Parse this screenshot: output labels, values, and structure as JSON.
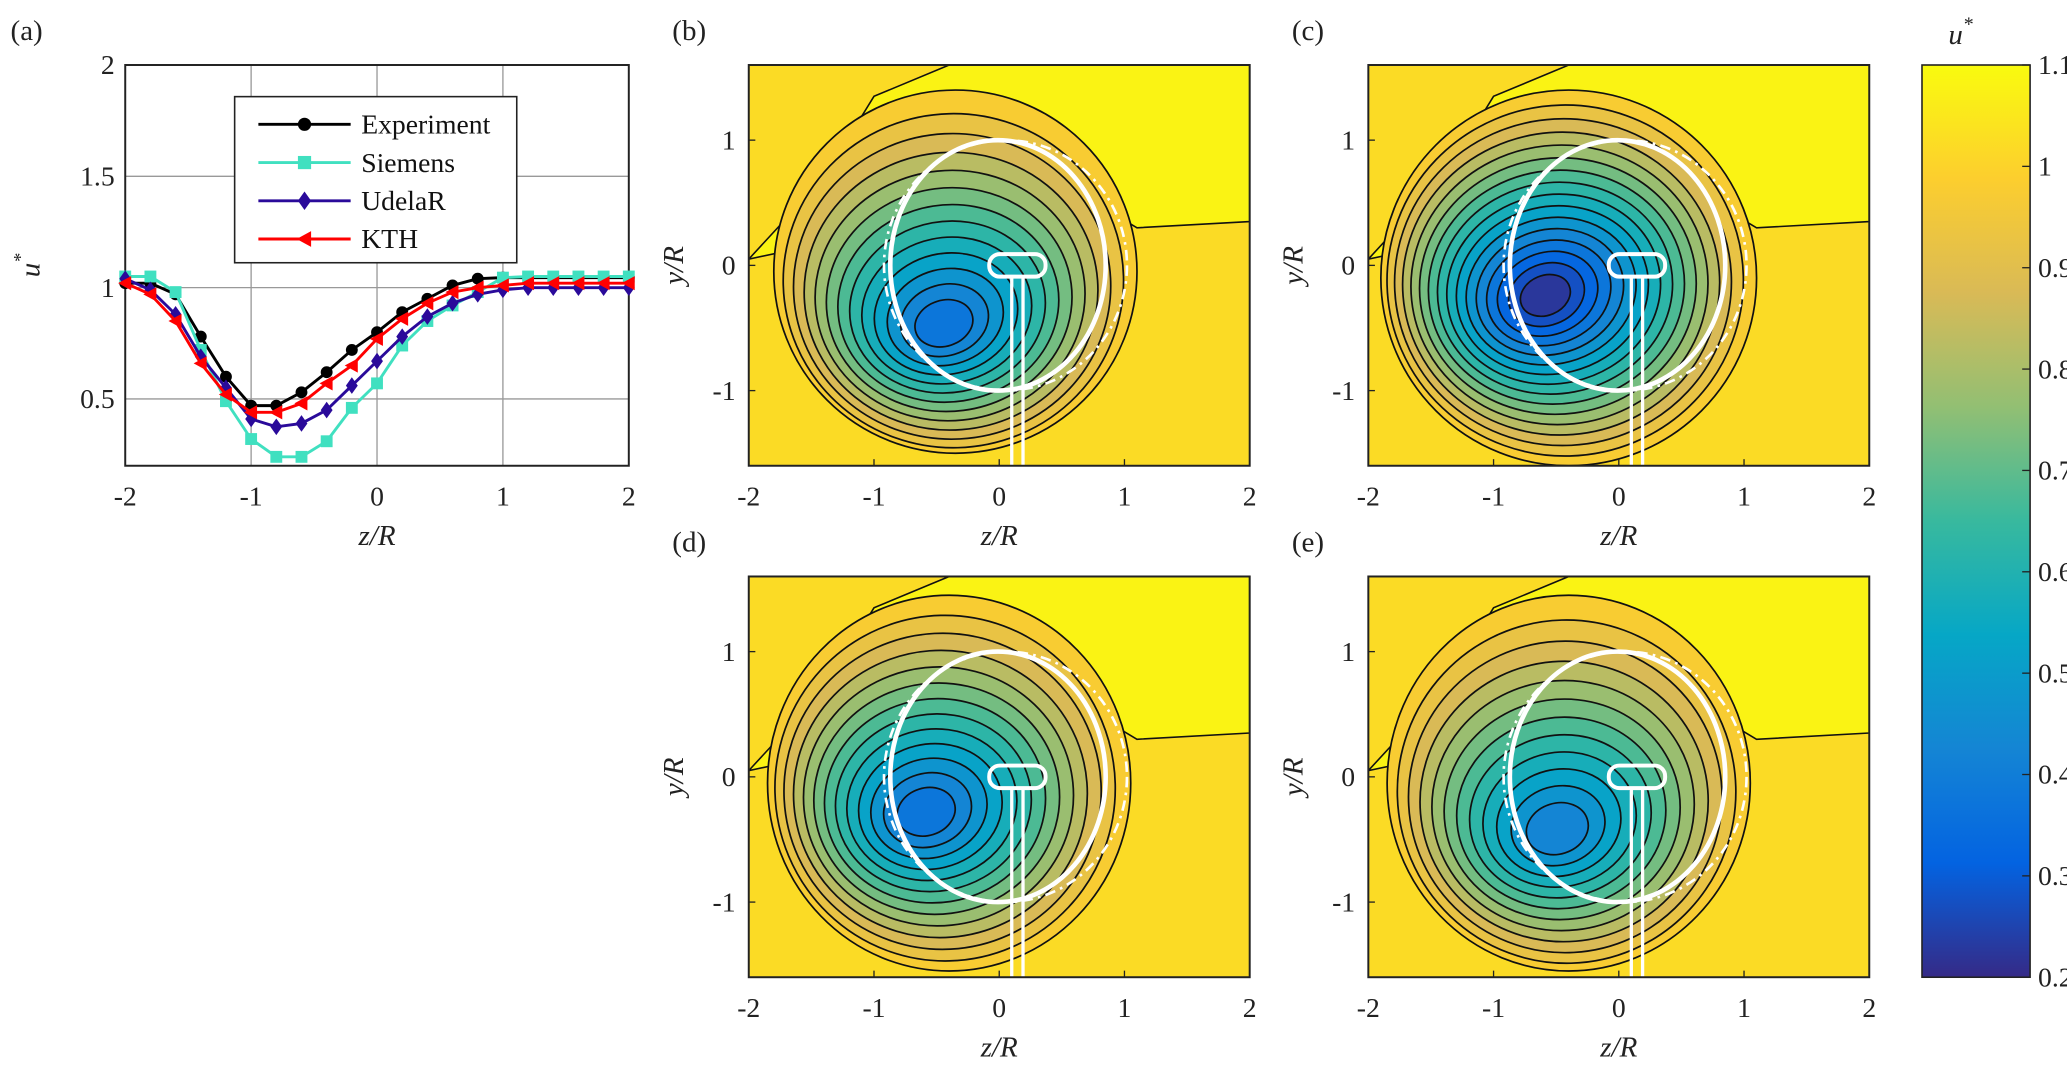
{
  "panel_labels": {
    "a": "(a)",
    "b": "(b)",
    "c": "(c)",
    "d": "(d)",
    "e": "(e)"
  },
  "chart_data": [
    {
      "type": "line",
      "panel": "(a)",
      "xlabel": "z/R",
      "ylabel": "u*",
      "xlim": [
        -2,
        2
      ],
      "ylim": [
        0.2,
        2
      ],
      "xticks": [
        "-2",
        "-1",
        "0",
        "1",
        "2"
      ],
      "yticks": [
        "0.5",
        "1",
        "1.5",
        "2"
      ],
      "ytick_values": [
        0.5,
        1,
        1.5,
        2
      ],
      "grid": true,
      "legend_position": "top-center",
      "x": [
        -2,
        -1.8,
        -1.6,
        -1.4,
        -1.2,
        -1.0,
        -0.8,
        -0.6,
        -0.4,
        -0.2,
        0,
        0.2,
        0.4,
        0.6,
        0.8,
        1.0,
        1.2,
        1.4,
        1.6,
        1.8,
        2.0
      ],
      "series": [
        {
          "name": "Experiment",
          "color": "#000000",
          "marker": "circle",
          "values": [
            1.02,
            1.02,
            0.97,
            0.78,
            0.6,
            0.47,
            0.47,
            0.53,
            0.62,
            0.72,
            0.8,
            0.89,
            0.95,
            1.01,
            1.04,
            1.045,
            1.045,
            1.045,
            1.045,
            1.045,
            1.045
          ]
        },
        {
          "name": "Siemens",
          "color": "#40e0c0",
          "marker": "square",
          "values": [
            1.05,
            1.05,
            0.98,
            0.72,
            0.49,
            0.32,
            0.24,
            0.24,
            0.31,
            0.46,
            0.57,
            0.74,
            0.85,
            0.92,
            0.98,
            1.045,
            1.05,
            1.05,
            1.05,
            1.05,
            1.05
          ]
        },
        {
          "name": "UdelaR",
          "color": "#2a0a9a",
          "marker": "diamond",
          "values": [
            1.04,
            0.99,
            0.88,
            0.69,
            0.55,
            0.41,
            0.375,
            0.39,
            0.45,
            0.56,
            0.67,
            0.78,
            0.87,
            0.93,
            0.97,
            0.99,
            1.0,
            1.0,
            1.0,
            1.0,
            1.0
          ]
        },
        {
          "name": "KTH",
          "color": "#ff0000",
          "marker": "triangle-left",
          "values": [
            1.02,
            0.97,
            0.85,
            0.66,
            0.52,
            0.44,
            0.44,
            0.48,
            0.57,
            0.65,
            0.77,
            0.86,
            0.93,
            0.98,
            1.0,
            1.01,
            1.02,
            1.02,
            1.02,
            1.02,
            1.02
          ]
        }
      ]
    },
    {
      "type": "heatmap",
      "panel": "(b)",
      "xlabel": "z/R",
      "ylabel": "y/R",
      "xlim": [
        -2,
        2
      ],
      "ylim": [
        -1.6,
        1.6
      ],
      "xticks": [
        "-2",
        "-1",
        "0",
        "1",
        "2"
      ],
      "yticks": [
        "-1",
        "0",
        "1"
      ],
      "min_value": 0.35,
      "min_location": [
        -0.45,
        -0.5
      ]
    },
    {
      "type": "heatmap",
      "panel": "(c)",
      "xlabel": "z/R",
      "ylabel": "y/R",
      "xlim": [
        -2,
        2
      ],
      "ylim": [
        -1.6,
        1.6
      ],
      "xticks": [
        "-2",
        "-1",
        "0",
        "1",
        "2"
      ],
      "yticks": [
        "-1",
        "0",
        "1"
      ],
      "min_value": 0.2,
      "min_location": [
        -0.6,
        -0.25
      ]
    },
    {
      "type": "heatmap",
      "panel": "(d)",
      "xlabel": "z/R",
      "ylabel": "y/R",
      "xlim": [
        -2,
        2
      ],
      "ylim": [
        -1.6,
        1.6
      ],
      "xticks": [
        "-2",
        "-1",
        "0",
        "1",
        "2"
      ],
      "yticks": [
        "-1",
        "0",
        "1"
      ],
      "min_value": 0.35,
      "min_location": [
        -0.6,
        -0.3
      ]
    },
    {
      "type": "heatmap",
      "panel": "(e)",
      "xlabel": "z/R",
      "ylabel": "y/R",
      "xlim": [
        -2,
        2
      ],
      "ylim": [
        -1.6,
        1.6
      ],
      "xticks": [
        "-2",
        "-1",
        "0",
        "1",
        "2"
      ],
      "yticks": [
        "-1",
        "0",
        "1"
      ],
      "min_value": 0.4,
      "min_location": [
        -0.5,
        -0.45
      ]
    }
  ],
  "colorbar": {
    "label_base": "u",
    "label_sup": "*",
    "colormap": "parula",
    "range": [
      0.2,
      1.1
    ],
    "ticks": [
      "0.2",
      "0.3",
      "0.4",
      "0.5",
      "0.6",
      "0.7",
      "0.8",
      "0.9",
      "1",
      "1.1"
    ],
    "tick_values": [
      0.2,
      0.3,
      0.4,
      0.5,
      0.6,
      0.7,
      0.8,
      0.9,
      1.0,
      1.1
    ]
  }
}
